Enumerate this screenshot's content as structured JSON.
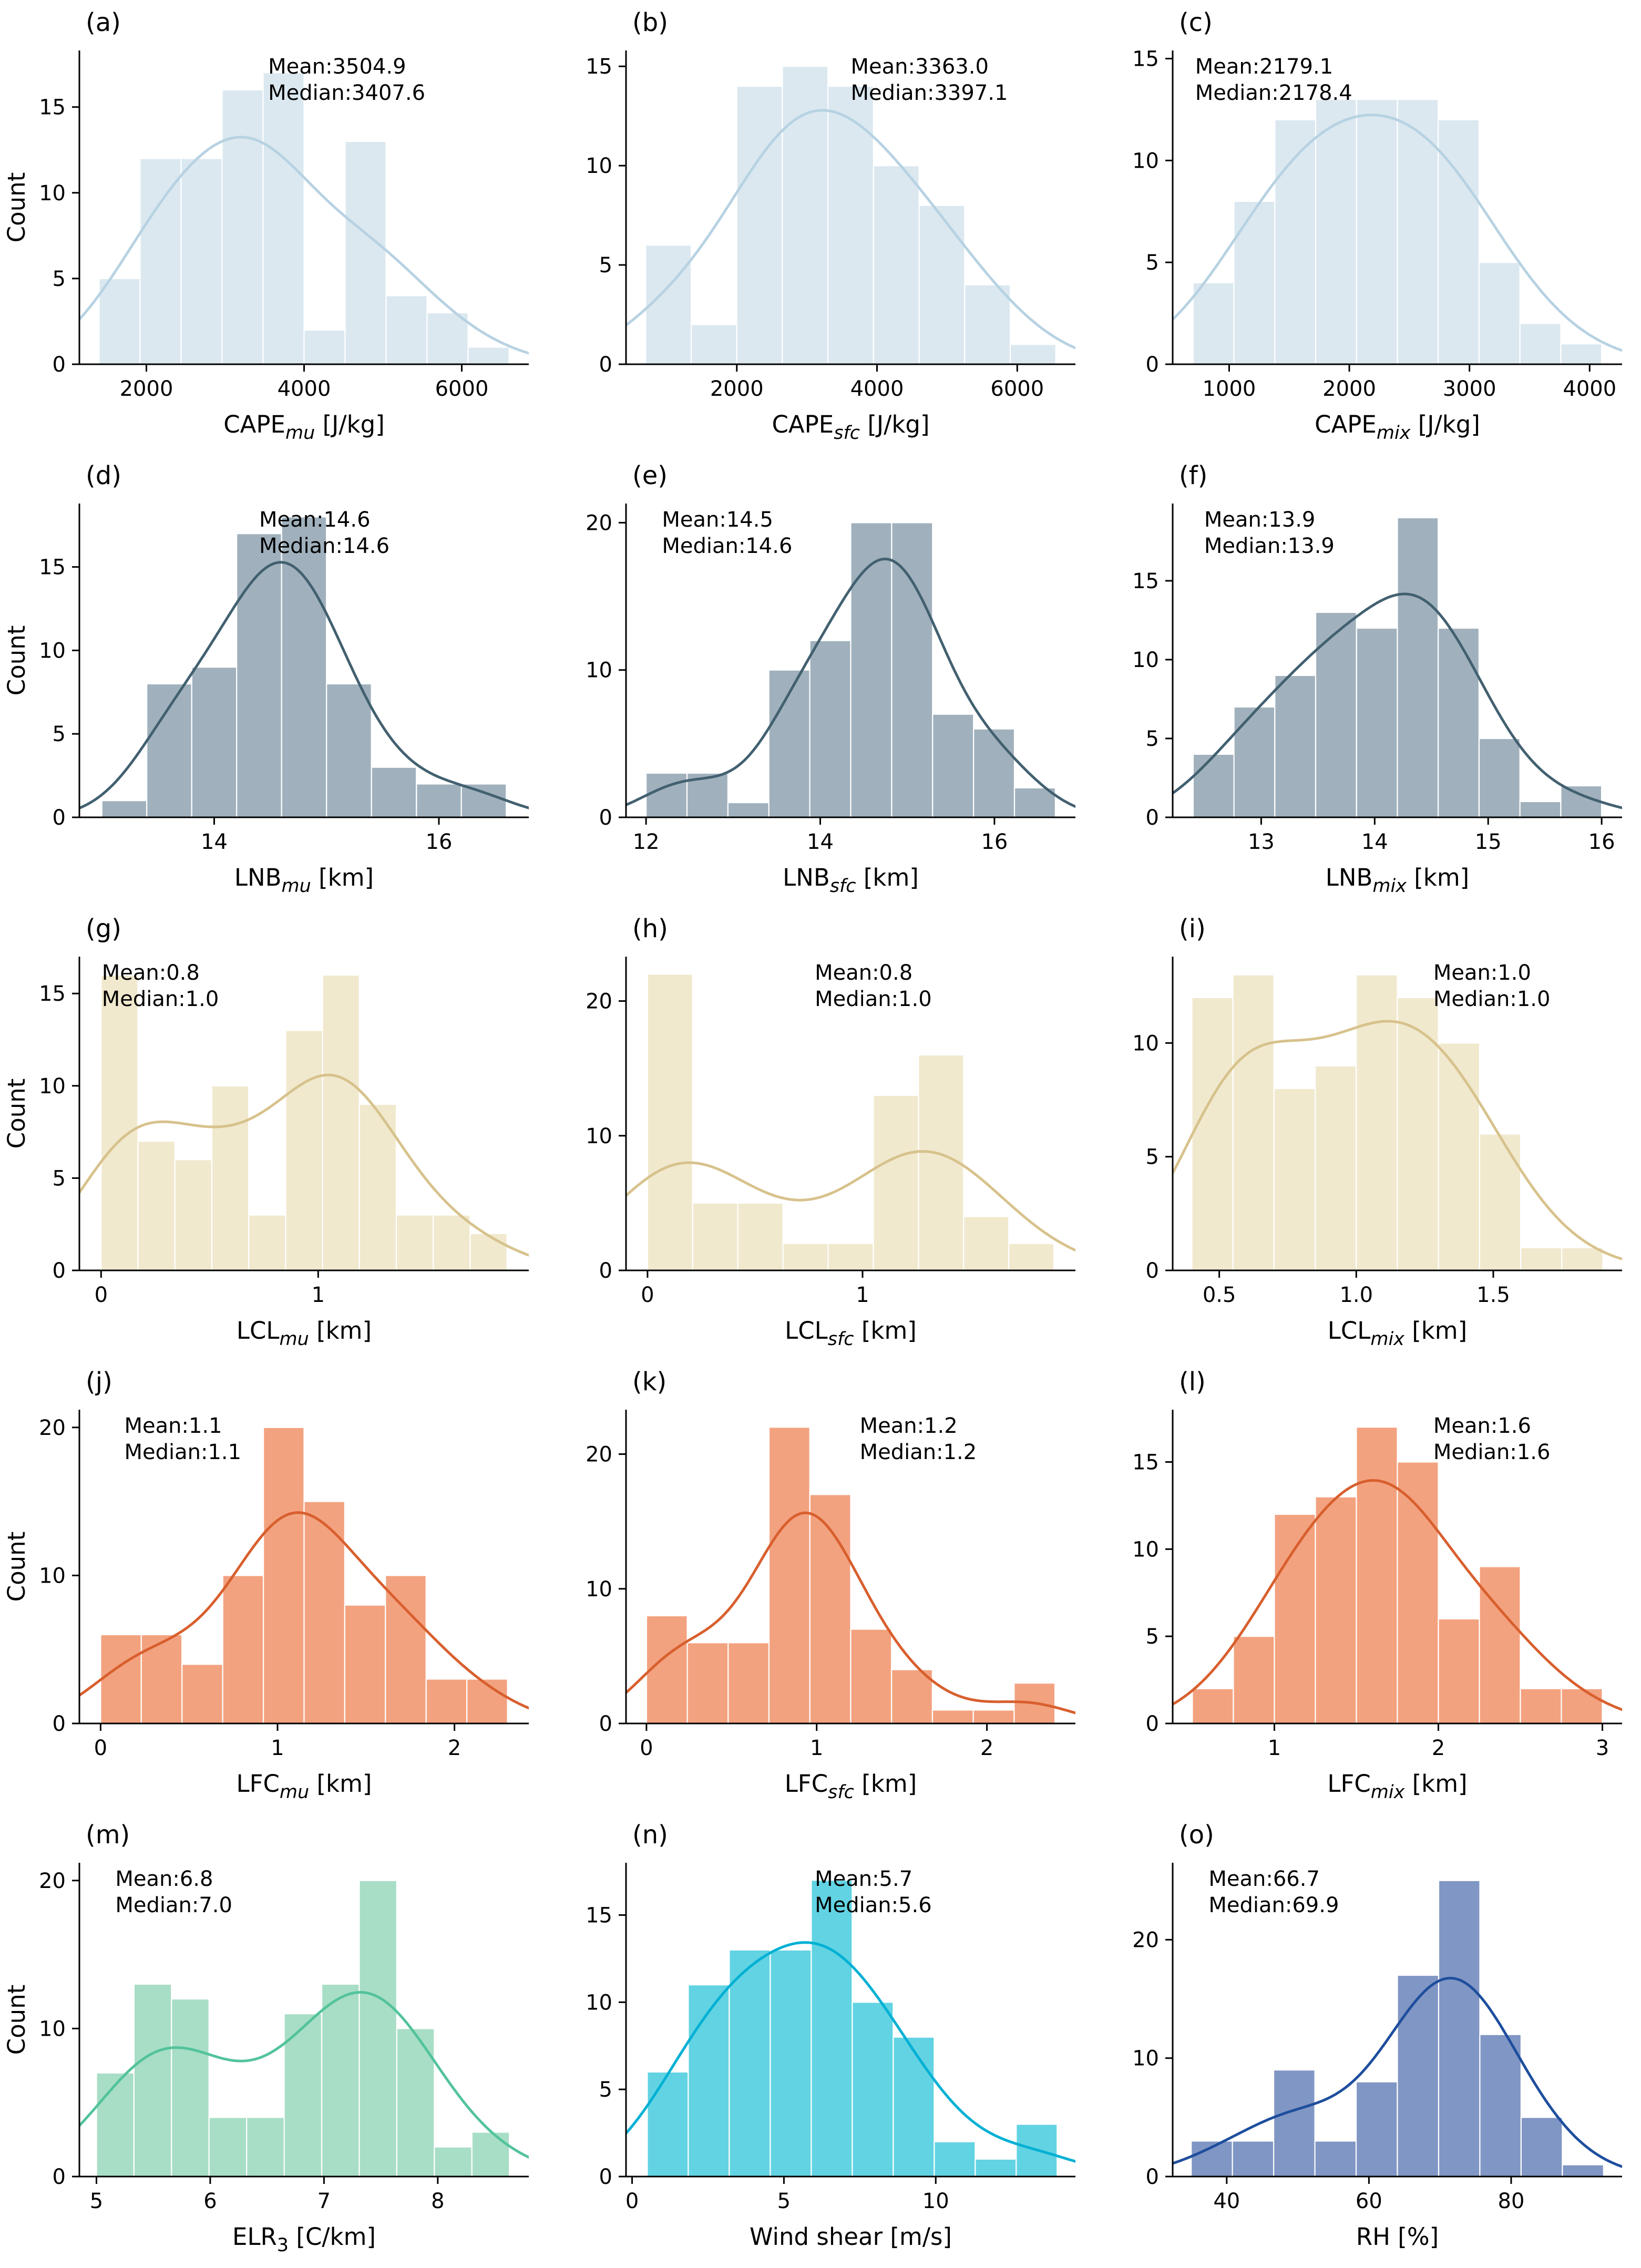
{
  "ylabel": "Count",
  "chart_data": [
    {
      "type": "histogram+kde",
      "panel": "(a)",
      "xlabel": [
        {
          "t": "CAPE"
        },
        {
          "t": "mu",
          "sub": true,
          "italic": true
        },
        {
          "t": " [J/kg]"
        }
      ],
      "mean": "Mean:3504.9",
      "median": "Median:3407.6",
      "annot_x": 0.42,
      "bar_color": "#dbe8f0",
      "line_color": "#b7d2e2",
      "bin_start": 1400,
      "bin_width": 520,
      "counts": [
        5,
        12,
        12,
        16,
        17,
        2,
        13,
        4,
        3,
        1
      ],
      "x_ticks": [
        2000,
        4000,
        6000
      ],
      "x_tick_labels": [
        "2000",
        "4000",
        "6000"
      ],
      "y_ticks": [
        0,
        5,
        10,
        15
      ],
      "y_max": 18.3,
      "x_min": 1150,
      "x_max": 6850,
      "smooth": 1.3,
      "show_ylabel": true
    },
    {
      "type": "histogram+kde",
      "panel": "(b)",
      "xlabel": [
        {
          "t": "CAPE"
        },
        {
          "t": "sfc",
          "sub": true,
          "italic": true
        },
        {
          "t": " [J/kg]"
        }
      ],
      "mean": "Mean:3363.0",
      "median": "Median:3397.1",
      "annot_x": 0.5,
      "bar_color": "#dbe8f0",
      "line_color": "#b7d2e2",
      "bin_start": 700,
      "bin_width": 650,
      "counts": [
        6,
        2,
        14,
        15,
        14,
        10,
        8,
        4,
        1
      ],
      "x_ticks": [
        2000,
        4000,
        6000
      ],
      "x_tick_labels": [
        "2000",
        "4000",
        "6000"
      ],
      "y_ticks": [
        0,
        5,
        10,
        15
      ],
      "y_max": 15.8,
      "x_min": 420,
      "x_max": 6830,
      "smooth": 1.25,
      "show_ylabel": false
    },
    {
      "type": "histogram+kde",
      "panel": "(c)",
      "xlabel": [
        {
          "t": "CAPE"
        },
        {
          "t": "mix",
          "sub": true,
          "italic": true
        },
        {
          "t": " [J/kg]"
        }
      ],
      "mean": "Mean:2179.1",
      "median": "Median:2178.4",
      "annot_x": 0.05,
      "bar_color": "#dbe8f0",
      "line_color": "#b7d2e2",
      "bin_start": 700,
      "bin_width": 340,
      "counts": [
        4,
        8,
        12,
        13,
        13,
        13,
        12,
        5,
        2,
        1
      ],
      "x_ticks": [
        1000,
        2000,
        3000,
        4000
      ],
      "x_tick_labels": [
        "1000",
        "2000",
        "3000",
        "4000"
      ],
      "y_ticks": [
        0,
        5,
        10,
        15
      ],
      "y_max": 15.4,
      "x_min": 530,
      "x_max": 4270,
      "smooth": 1.45,
      "show_ylabel": false
    },
    {
      "type": "histogram+kde",
      "panel": "(d)",
      "xlabel": [
        {
          "t": "LNB"
        },
        {
          "t": "mu",
          "sub": true,
          "italic": true
        },
        {
          "t": " [km]"
        }
      ],
      "mean": "Mean:14.6",
      "median": "Median:14.6",
      "annot_x": 0.4,
      "bar_color": "#a0b1bd",
      "line_color": "#426070",
      "bin_start": 13.0,
      "bin_width": 0.4,
      "counts": [
        1,
        8,
        9,
        17,
        18,
        8,
        3,
        2,
        2
      ],
      "x_ticks": [
        14,
        16
      ],
      "x_tick_labels": [
        "14",
        "16"
      ],
      "y_ticks": [
        0,
        5,
        10,
        15
      ],
      "y_max": 18.8,
      "x_min": 12.8,
      "x_max": 16.8,
      "smooth": 0.9,
      "show_ylabel": true
    },
    {
      "type": "histogram+kde",
      "panel": "(e)",
      "xlabel": [
        {
          "t": "LNB"
        },
        {
          "t": "sfc",
          "sub": true,
          "italic": true
        },
        {
          "t": " [km]"
        }
      ],
      "mean": "Mean:14.5",
      "median": "Median:14.6",
      "annot_x": 0.08,
      "bar_color": "#a0b1bd",
      "line_color": "#426070",
      "bin_start": 12.0,
      "bin_width": 0.47,
      "counts": [
        3,
        3,
        1,
        10,
        12,
        20,
        20,
        7,
        6,
        2
      ],
      "x_ticks": [
        12,
        14,
        16
      ],
      "x_tick_labels": [
        "12",
        "14",
        "16"
      ],
      "y_ticks": [
        0,
        10,
        20
      ],
      "y_max": 21.3,
      "x_min": 11.77,
      "x_max": 16.93,
      "smooth": 0.9,
      "show_ylabel": false
    },
    {
      "type": "histogram+kde",
      "panel": "(f)",
      "xlabel": [
        {
          "t": "LNB"
        },
        {
          "t": "mix",
          "sub": true,
          "italic": true
        },
        {
          "t": " [km]"
        }
      ],
      "mean": "Mean:13.9",
      "median": "Median:13.9",
      "annot_x": 0.07,
      "bar_color": "#a0b1bd",
      "line_color": "#426070",
      "bin_start": 12.4,
      "bin_width": 0.36,
      "counts": [
        4,
        7,
        9,
        13,
        12,
        19,
        12,
        5,
        1,
        2
      ],
      "x_ticks": [
        13,
        14,
        15,
        16
      ],
      "x_tick_labels": [
        "13",
        "14",
        "15",
        "16"
      ],
      "y_ticks": [
        0,
        5,
        10,
        15
      ],
      "y_max": 19.9,
      "x_min": 12.22,
      "x_max": 16.18,
      "smooth": 1.1,
      "show_ylabel": false
    },
    {
      "type": "histogram+kde",
      "panel": "(g)",
      "xlabel": [
        {
          "t": "LCL"
        },
        {
          "t": "mu",
          "sub": true,
          "italic": true
        },
        {
          "t": " [km]"
        }
      ],
      "mean": "Mean:0.8",
      "median": "Median:1.0",
      "annot_x": 0.05,
      "bar_color": "#f1e9ce",
      "line_color": "#d7c28c",
      "bin_start": 0.0,
      "bin_width": 0.17,
      "counts": [
        16,
        7,
        6,
        10,
        3,
        13,
        16,
        9,
        3,
        3,
        2
      ],
      "x_ticks": [
        0,
        1
      ],
      "x_tick_labels": [
        "0",
        "1"
      ],
      "y_ticks": [
        0,
        5,
        10,
        15
      ],
      "y_max": 17.0,
      "x_min": -0.1,
      "x_max": 1.97,
      "smooth": 1.4,
      "show_ylabel": true
    },
    {
      "type": "histogram+kde",
      "panel": "(h)",
      "xlabel": [
        {
          "t": "LCL"
        },
        {
          "t": "sfc",
          "sub": true,
          "italic": true
        },
        {
          "t": " [km]"
        }
      ],
      "mean": "Mean:0.8",
      "median": "Median:1.0",
      "annot_x": 0.42,
      "bar_color": "#f1e9ce",
      "line_color": "#d7c28c",
      "bin_start": 0.0,
      "bin_width": 0.21,
      "counts": [
        22,
        5,
        5,
        2,
        2,
        13,
        16,
        4,
        2
      ],
      "x_ticks": [
        0,
        1
      ],
      "x_tick_labels": [
        "0",
        "1"
      ],
      "y_ticks": [
        0,
        10,
        20
      ],
      "y_max": 23.3,
      "x_min": -0.1,
      "x_max": 1.99,
      "smooth": 1.45,
      "show_ylabel": false
    },
    {
      "type": "histogram+kde",
      "panel": "(i)",
      "xlabel": [
        {
          "t": "LCL"
        },
        {
          "t": "mix",
          "sub": true,
          "italic": true
        },
        {
          "t": " [km]"
        }
      ],
      "mean": "Mean:1.0",
      "median": "Median:1.0",
      "annot_x": 0.58,
      "bar_color": "#f1e9ce",
      "line_color": "#d7c28c",
      "bin_start": 0.4,
      "bin_width": 0.15,
      "counts": [
        12,
        13,
        8,
        9,
        13,
        12,
        10,
        6,
        1,
        1
      ],
      "x_ticks": [
        0.5,
        1.0,
        1.5
      ],
      "x_tick_labels": [
        "0.5",
        "1.0",
        "1.5"
      ],
      "y_ticks": [
        0,
        5,
        10
      ],
      "y_max": 13.8,
      "x_min": 0.33,
      "x_max": 1.97,
      "smooth": 1.3,
      "show_ylabel": false
    },
    {
      "type": "histogram+kde",
      "panel": "(j)",
      "xlabel": [
        {
          "t": "LFC"
        },
        {
          "t": "mu",
          "sub": true,
          "italic": true
        },
        {
          "t": " [km]"
        }
      ],
      "mean": "Mean:1.1",
      "median": "Median:1.1",
      "annot_x": 0.1,
      "bar_color": "#f3a27f",
      "line_color": "#d85f2e",
      "bin_start": 0.0,
      "bin_width": 0.23,
      "counts": [
        6,
        6,
        4,
        10,
        20,
        15,
        8,
        10,
        3,
        3
      ],
      "x_ticks": [
        0,
        1,
        2
      ],
      "x_tick_labels": [
        "0",
        "1",
        "2"
      ],
      "y_ticks": [
        0,
        10,
        20
      ],
      "y_max": 21.2,
      "x_min": -0.12,
      "x_max": 2.42,
      "smooth": 1.15,
      "show_ylabel": true
    },
    {
      "type": "histogram+kde",
      "panel": "(k)",
      "xlabel": [
        {
          "t": "LFC"
        },
        {
          "t": "sfc",
          "sub": true,
          "italic": true
        },
        {
          "t": " [km]"
        }
      ],
      "mean": "Mean:1.2",
      "median": "Median:1.2",
      "annot_x": 0.52,
      "bar_color": "#f3a27f",
      "line_color": "#d85f2e",
      "bin_start": 0.0,
      "bin_width": 0.24,
      "counts": [
        8,
        6,
        6,
        22,
        17,
        7,
        4,
        1,
        1,
        3
      ],
      "x_ticks": [
        0,
        1,
        2
      ],
      "x_tick_labels": [
        "0",
        "1",
        "2"
      ],
      "y_ticks": [
        0,
        10,
        20
      ],
      "y_max": 23.3,
      "x_min": -0.12,
      "x_max": 2.52,
      "smooth": 1.0,
      "show_ylabel": false
    },
    {
      "type": "histogram+kde",
      "panel": "(l)",
      "xlabel": [
        {
          "t": "LFC"
        },
        {
          "t": "mix",
          "sub": true,
          "italic": true
        },
        {
          "t": " [km]"
        }
      ],
      "mean": "Mean:1.6",
      "median": "Median:1.6",
      "annot_x": 0.58,
      "bar_color": "#f3a27f",
      "line_color": "#d85f2e",
      "bin_start": 0.5,
      "bin_width": 0.25,
      "counts": [
        2,
        5,
        12,
        13,
        17,
        15,
        6,
        9,
        2,
        2
      ],
      "x_ticks": [
        1,
        2,
        3
      ],
      "x_tick_labels": [
        "1",
        "2",
        "3"
      ],
      "y_ticks": [
        0,
        5,
        10,
        15
      ],
      "y_max": 18.0,
      "x_min": 0.38,
      "x_max": 3.12,
      "smooth": 1.2,
      "show_ylabel": false
    },
    {
      "type": "histogram+kde",
      "panel": "(m)",
      "xlabel": [
        {
          "t": "ELR"
        },
        {
          "t": "3",
          "sub": true,
          "italic": false
        },
        {
          "t": " [C/km]"
        }
      ],
      "mean": "Mean:6.8",
      "median": "Median:7.0",
      "annot_x": 0.08,
      "bar_color": "#a8dec6",
      "line_color": "#53c39c",
      "bin_start": 5.0,
      "bin_width": 0.33,
      "counts": [
        7,
        13,
        12,
        4,
        4,
        11,
        13,
        20,
        10,
        2,
        3
      ],
      "x_ticks": [
        5,
        6,
        7,
        8
      ],
      "x_tick_labels": [
        "5",
        "6",
        "7",
        "8"
      ],
      "y_ticks": [
        0,
        10,
        20
      ],
      "y_max": 21.2,
      "x_min": 4.85,
      "x_max": 8.8,
      "smooth": 1.45,
      "show_ylabel": true
    },
    {
      "type": "histogram+kde",
      "panel": "(n)",
      "xlabel": [
        {
          "t": "Wind shear [m/s]"
        }
      ],
      "mean": "Mean:5.7",
      "median": "Median:5.6",
      "annot_x": 0.42,
      "bar_color": "#62d3e3",
      "line_color": "#00b0d4",
      "bin_start": 0.5,
      "bin_width": 1.35,
      "counts": [
        6,
        11,
        13,
        13,
        17,
        10,
        8,
        2,
        1,
        3
      ],
      "x_ticks": [
        0,
        5,
        10
      ],
      "x_tick_labels": [
        "0",
        "5",
        "10"
      ],
      "y_ticks": [
        0,
        5,
        10,
        15
      ],
      "y_max": 18.0,
      "x_min": -0.2,
      "x_max": 14.6,
      "smooth": 1.2,
      "show_ylabel": false
    },
    {
      "type": "histogram+kde",
      "panel": "(o)",
      "xlabel": [
        {
          "t": "RH [%]"
        }
      ],
      "mean": "Mean:66.7",
      "median": "Median:69.9",
      "annot_x": 0.08,
      "bar_color": "#8096c4",
      "line_color": "#1e4e9d",
      "bin_start": 35,
      "bin_width": 5.8,
      "counts": [
        3,
        3,
        9,
        3,
        8,
        17,
        25,
        12,
        5,
        1
      ],
      "x_ticks": [
        40,
        60,
        80
      ],
      "x_tick_labels": [
        "40",
        "60",
        "80"
      ],
      "y_ticks": [
        0,
        10,
        20
      ],
      "y_max": 26.5,
      "x_min": 32.4,
      "x_max": 95.6,
      "smooth": 1.15,
      "show_ylabel": false
    }
  ]
}
